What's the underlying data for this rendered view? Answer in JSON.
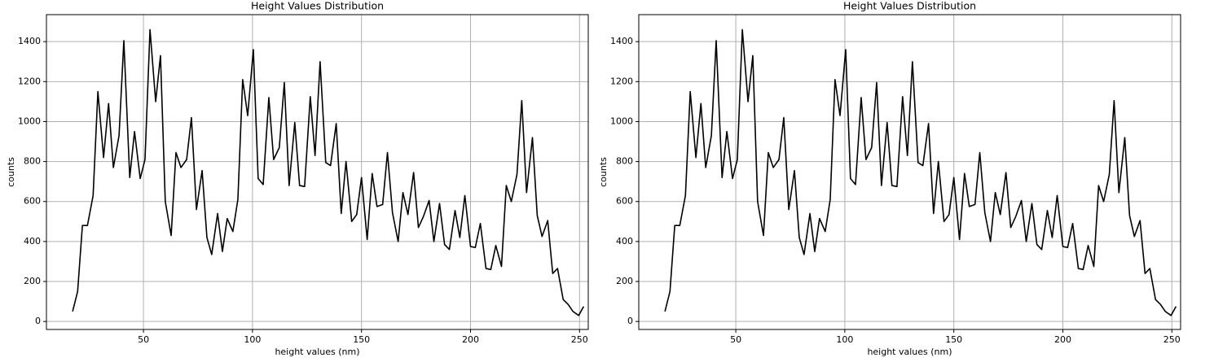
{
  "chart_data": [
    {
      "type": "line",
      "title": "Height Values Distribution",
      "x_label": "height values (nm)",
      "y_label": "counts",
      "x": [
        17.5,
        19.8,
        22,
        24.3,
        26.9,
        29.1,
        31.7,
        34,
        36.2,
        38.8,
        41,
        43.7,
        45.9,
        48.5,
        50.7,
        53,
        55.6,
        57.8,
        60,
        62.7,
        64.9,
        67.2,
        69.8,
        72,
        74.3,
        76.9,
        79.1,
        81.3,
        84,
        86.2,
        88.4,
        91,
        93.3,
        95.5,
        97.8,
        100.4,
        102.6,
        104.9,
        107.5,
        109.7,
        112.3,
        114.6,
        116.8,
        119.4,
        121.6,
        123.9,
        126.5,
        128.7,
        131,
        133.6,
        135.8,
        138.4,
        140.7,
        142.9,
        145.5,
        147.8,
        150,
        152.6,
        154.9,
        157.1,
        159.7,
        161.9,
        164.2,
        166.8,
        169,
        171.3,
        173.9,
        176.1,
        178.4,
        181,
        183.2,
        185.8,
        188.1,
        190.3,
        192.9,
        195.1,
        197.4,
        200,
        202.2,
        204.5,
        207.1,
        209.3,
        211.6,
        214.2,
        216.4,
        218.7,
        221.3,
        223.5,
        225.7,
        228.4,
        230.6,
        232.8,
        235.4,
        237.7,
        239.9,
        242.5,
        244.8,
        247,
        249.6,
        251.9
      ],
      "series": [
        {
          "color": "#000000",
          "values": [
            50,
            150,
            480,
            480,
            630,
            1150,
            820,
            1090,
            770,
            930,
            1405,
            720,
            950,
            715,
            810,
            1460,
            1100,
            1330,
            600,
            430,
            845,
            770,
            810,
            1020,
            560,
            755,
            420,
            335,
            540,
            350,
            515,
            450,
            610,
            1210,
            1030,
            1360,
            715,
            685,
            1120,
            810,
            870,
            1195,
            680,
            995,
            680,
            675,
            1125,
            830,
            1300,
            795,
            780,
            990,
            540,
            800,
            500,
            535,
            720,
            410,
            740,
            575,
            585,
            845,
            545,
            400,
            645,
            535,
            745,
            470,
            525,
            605,
            400,
            590,
            385,
            360,
            555,
            420,
            630,
            375,
            370,
            490,
            265,
            260,
            380,
            275,
            680,
            600,
            735,
            1105,
            645,
            920,
            530,
            425,
            505,
            240,
            265,
            110,
            85,
            50,
            30,
            75
          ]
        }
      ],
      "xlim": [
        5.5,
        254
      ],
      "ylim": [
        -40,
        1535
      ],
      "xticks": [
        50,
        100,
        150,
        200,
        250
      ],
      "yticks": [
        0,
        200,
        400,
        600,
        800,
        1000,
        1200,
        1400
      ],
      "grid": true
    },
    {
      "type": "line",
      "title": "Height Values Distribution",
      "x_label": "height values (nm)",
      "y_label": "counts",
      "x": [
        17.5,
        19.8,
        22,
        24.3,
        26.9,
        29.1,
        31.7,
        34,
        36.2,
        38.8,
        41,
        43.7,
        45.9,
        48.5,
        50.7,
        53,
        55.6,
        57.8,
        60,
        62.7,
        64.9,
        67.2,
        69.8,
        72,
        74.3,
        76.9,
        79.1,
        81.3,
        84,
        86.2,
        88.4,
        91,
        93.3,
        95.5,
        97.8,
        100.4,
        102.6,
        104.9,
        107.5,
        109.7,
        112.3,
        114.6,
        116.8,
        119.4,
        121.6,
        123.9,
        126.5,
        128.7,
        131,
        133.6,
        135.8,
        138.4,
        140.7,
        142.9,
        145.5,
        147.8,
        150,
        152.6,
        154.9,
        157.1,
        159.7,
        161.9,
        164.2,
        166.8,
        169,
        171.3,
        173.9,
        176.1,
        178.4,
        181,
        183.2,
        185.8,
        188.1,
        190.3,
        192.9,
        195.1,
        197.4,
        200,
        202.2,
        204.5,
        207.1,
        209.3,
        211.6,
        214.2,
        216.4,
        218.7,
        221.3,
        223.5,
        225.7,
        228.4,
        230.6,
        232.8,
        235.4,
        237.7,
        239.9,
        242.5,
        244.8,
        247,
        249.6,
        251.9
      ],
      "series": [
        {
          "color": "#000000",
          "values": [
            50,
            150,
            480,
            480,
            630,
            1150,
            820,
            1090,
            770,
            930,
            1405,
            720,
            950,
            715,
            810,
            1460,
            1100,
            1330,
            600,
            430,
            845,
            770,
            810,
            1020,
            560,
            755,
            420,
            335,
            540,
            350,
            515,
            450,
            610,
            1210,
            1030,
            1360,
            715,
            685,
            1120,
            810,
            870,
            1195,
            680,
            995,
            680,
            675,
            1125,
            830,
            1300,
            795,
            780,
            990,
            540,
            800,
            500,
            535,
            720,
            410,
            740,
            575,
            585,
            845,
            545,
            400,
            645,
            535,
            745,
            470,
            525,
            605,
            400,
            590,
            385,
            360,
            555,
            420,
            630,
            375,
            370,
            490,
            265,
            260,
            380,
            275,
            680,
            600,
            735,
            1105,
            645,
            920,
            530,
            425,
            505,
            240,
            265,
            110,
            85,
            50,
            30,
            75
          ]
        }
      ],
      "xlim": [
        5.5,
        254
      ],
      "ylim": [
        -40,
        1535
      ],
      "xticks": [
        50,
        100,
        150,
        200,
        250
      ],
      "yticks": [
        0,
        200,
        400,
        600,
        800,
        1000,
        1200,
        1400
      ],
      "grid": true
    }
  ]
}
